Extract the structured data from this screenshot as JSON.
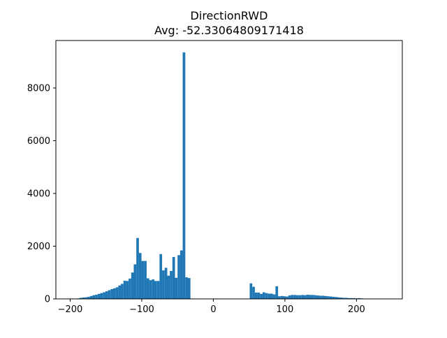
{
  "chart_data": {
    "type": "bar",
    "title": "DirectionRWD",
    "subtitle": "Avg: -52.33064809171418",
    "xlabel": "",
    "ylabel": "",
    "xlim": [
      -220,
      264
    ],
    "ylim": [
      0,
      9800
    ],
    "xticks": [
      -200,
      -100,
      0,
      100,
      200
    ],
    "yticks": [
      0,
      2000,
      4000,
      6000,
      8000
    ],
    "grid": false,
    "bar_color": "#1f77b4",
    "bin_edges_start": -194,
    "bin_width": 3.6,
    "values": [
      10,
      20,
      40,
      55,
      60,
      80,
      110,
      140,
      160,
      190,
      220,
      250,
      290,
      330,
      370,
      400,
      440,
      510,
      570,
      690,
      680,
      770,
      1000,
      1310,
      2310,
      1740,
      1440,
      1440,
      780,
      710,
      740,
      680,
      680,
      1700,
      1080,
      1180,
      880,
      1060,
      1590,
      800,
      1660,
      1840,
      9350,
      820,
      790,
      0,
      0,
      0,
      0,
      0,
      0,
      0,
      0,
      0,
      0,
      0,
      0,
      0,
      0,
      0,
      0,
      0,
      0,
      0,
      0,
      0,
      0,
      0,
      590,
      460,
      240,
      240,
      190,
      250,
      220,
      200,
      200,
      170,
      480,
      100,
      110,
      100,
      90,
      130,
      150,
      150,
      140,
      140,
      150,
      140,
      160,
      150,
      150,
      140,
      130,
      120,
      120,
      110,
      100,
      90,
      80,
      70,
      60,
      50,
      40,
      40,
      30,
      30,
      30,
      20,
      30,
      20,
      10,
      0,
      0,
      0,
      0,
      0,
      0,
      0,
      0,
      0,
      0,
      0,
      0,
      5
    ]
  }
}
